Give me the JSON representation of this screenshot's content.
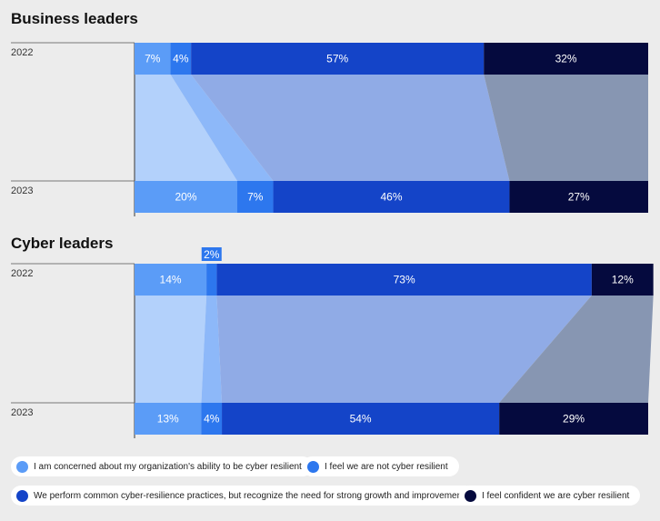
{
  "chart_data": [
    {
      "type": "bar",
      "title": "Business leaders",
      "categories": [
        "2022",
        "2023"
      ],
      "series": [
        {
          "name": "I am concerned about my organization's ability to be cyber resilient",
          "values": [
            7,
            20
          ]
        },
        {
          "name": "I feel we are not cyber resilient",
          "values": [
            4,
            7
          ]
        },
        {
          "name": "We perform common cyber-resilience practices, but recognize the need for strong growth and improvement",
          "values": [
            57,
            46
          ]
        },
        {
          "name": "I feel confident we are cyber resilient",
          "values": [
            32,
            27
          ]
        }
      ],
      "value_suffix": "%",
      "orientation": "horizontal-stacked-100",
      "connectors": true
    },
    {
      "type": "bar",
      "title": "Cyber leaders",
      "categories": [
        "2022",
        "2023"
      ],
      "series": [
        {
          "name": "I am concerned about my organization's ability to be cyber resilient",
          "values": [
            14,
            13
          ]
        },
        {
          "name": "I feel we are not cyber resilient",
          "values": [
            2,
            4
          ]
        },
        {
          "name": "We perform common cyber-resilience practices, but recognize the need for strong growth and improvement",
          "values": [
            73,
            54
          ]
        },
        {
          "name": "I feel confident we are cyber resilient",
          "values": [
            12,
            29
          ]
        }
      ],
      "value_suffix": "%",
      "orientation": "horizontal-stacked-100",
      "connectors": true
    }
  ],
  "colors": {
    "series": [
      "#5b9cf7",
      "#2d77ee",
      "#1444c8",
      "#050a3e"
    ],
    "bands": [
      "#b3d1fb",
      "#8db8f9",
      "#90abe6",
      "#8796b2"
    ],
    "axis": "#666666"
  },
  "legend": {
    "items": [
      {
        "label": "I am concerned about my organization's ability to be cyber resilient",
        "icon": "dot-light-blue"
      },
      {
        "label": "I feel we are not cyber resilient",
        "icon": "dot-blue"
      },
      {
        "label": "We perform common cyber-resilience practices, but recognize the need for strong growth and improvement",
        "icon": "dot-royal-blue"
      },
      {
        "label": "I feel confident we are cyber resilient",
        "icon": "dot-navy"
      }
    ]
  }
}
